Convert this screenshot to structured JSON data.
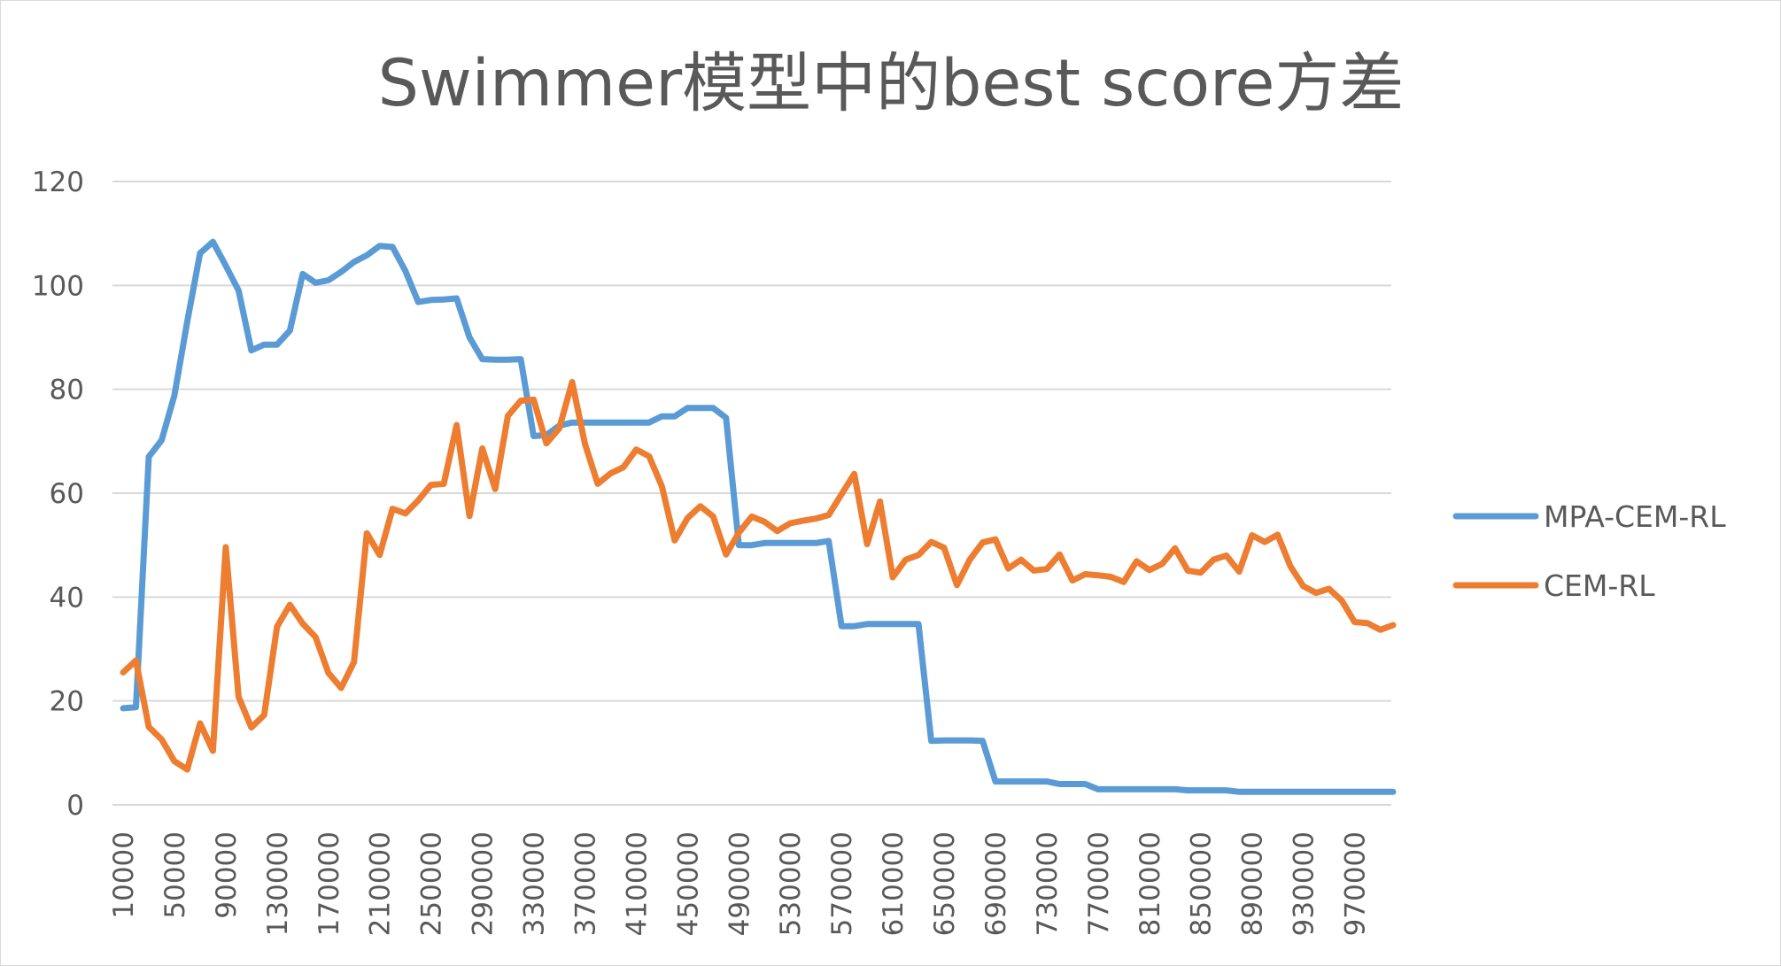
{
  "chart_data": {
    "type": "line",
    "title": "Swimmer模型中的best score方差",
    "xlabel": "",
    "ylabel": "",
    "ylim": [
      0,
      120
    ],
    "yticks": [
      "0",
      "20",
      "40",
      "60",
      "80",
      "100",
      "120"
    ],
    "x_tick_labels": [
      "10000",
      "50000",
      "90000",
      "130000",
      "170000",
      "210000",
      "250000",
      "290000",
      "330000",
      "370000",
      "410000",
      "450000",
      "490000",
      "530000",
      "570000",
      "610000",
      "650000",
      "690000",
      "730000",
      "770000",
      "810000",
      "850000",
      "890000",
      "930000",
      "970000"
    ],
    "x": [
      10000,
      20000,
      30000,
      40000,
      50000,
      60000,
      70000,
      80000,
      90000,
      100000,
      110000,
      120000,
      130000,
      140000,
      150000,
      160000,
      170000,
      180000,
      190000,
      200000,
      210000,
      220000,
      230000,
      240000,
      250000,
      260000,
      270000,
      280000,
      290000,
      300000,
      310000,
      320000,
      330000,
      340000,
      350000,
      360000,
      370000,
      380000,
      390000,
      400000,
      410000,
      420000,
      430000,
      440000,
      450000,
      460000,
      470000,
      480000,
      490000,
      500000,
      510000,
      520000,
      530000,
      540000,
      550000,
      560000,
      570000,
      580000,
      590000,
      600000,
      610000,
      620000,
      630000,
      640000,
      650000,
      660000,
      670000,
      680000,
      690000,
      700000,
      710000,
      720000,
      730000,
      740000,
      750000,
      760000,
      770000,
      780000,
      790000,
      800000,
      810000,
      820000,
      830000,
      840000,
      850000,
      860000,
      870000,
      880000,
      890000,
      900000,
      910000,
      920000,
      930000,
      940000,
      950000,
      960000,
      970000,
      980000,
      990000,
      1000000
    ],
    "grid": true,
    "legend_position": "right",
    "series": [
      {
        "name": "MPA-CEM-RL",
        "color": "#5b9bd5",
        "values": [
          18.6,
          18.8,
          67,
          70.2,
          78.8,
          93,
          106.2,
          108.4,
          103.8,
          99,
          87.5,
          88.6,
          88.6,
          91.3,
          102.2,
          100.5,
          101,
          102.6,
          104.5,
          105.8,
          107.6,
          107.4,
          102.8,
          96.8,
          97.2,
          97.3,
          97.5,
          90,
          85.8,
          85.7,
          85.7,
          85.8,
          71,
          71.2,
          73,
          73.6,
          73.6,
          73.6,
          73.6,
          73.6,
          73.6,
          73.6,
          74.8,
          74.8,
          76.4,
          76.4,
          76.4,
          74.5,
          50,
          50,
          50.4,
          50.4,
          50.4,
          50.4,
          50.4,
          50.8,
          34.4,
          34.4,
          34.8,
          34.8,
          34.8,
          34.8,
          34.8,
          12.3,
          12.4,
          12.4,
          12.4,
          12.3,
          4.5,
          4.5,
          4.5,
          4.5,
          4.5,
          4,
          4,
          4,
          3,
          3,
          3,
          3,
          3,
          3,
          3,
          2.8,
          2.8,
          2.8,
          2.8,
          2.5,
          2.5,
          2.5,
          2.5,
          2.5,
          2.5,
          2.5,
          2.5,
          2.5,
          2.5,
          2.5,
          2.5,
          2.5
        ]
      },
      {
        "name": "CEM-RL",
        "color": "#ed7d31",
        "values": [
          25.5,
          27.8,
          15,
          12.6,
          8.4,
          6.8,
          15.7,
          10.4,
          49.6,
          20.8,
          14.9,
          17.3,
          34.3,
          38.5,
          34.9,
          32.3,
          25.4,
          22.5,
          27.5,
          52.3,
          48.1,
          57,
          56.1,
          58.6,
          61.6,
          61.8,
          73.1,
          55.6,
          68.6,
          60.8,
          74.9,
          77.8,
          78,
          69.6,
          72.5,
          81.4,
          69.5,
          61.8,
          63.8,
          65,
          68.4,
          67.1,
          61.3,
          50.9,
          55.2,
          57.5,
          55.5,
          48.2,
          52.4,
          55.5,
          54.5,
          52.7,
          54.2,
          54.7,
          55.1,
          55.8,
          59.8,
          63.7,
          50.2,
          58.4,
          43.8,
          47.2,
          48.1,
          50.6,
          49.5,
          42.3,
          47.2,
          50.5,
          51.1,
          45.5,
          47.2,
          45.1,
          45.4,
          48.2,
          43.2,
          44.4,
          44.2,
          43.9,
          42.9,
          46.9,
          45.2,
          46.4,
          49.4,
          45.1,
          44.7,
          47.2,
          48,
          44.9,
          51.9,
          50.6,
          52,
          45.9,
          42.1,
          40.8,
          41.6,
          39.3,
          35.2,
          35,
          33.7,
          34.6
        ]
      }
    ]
  }
}
